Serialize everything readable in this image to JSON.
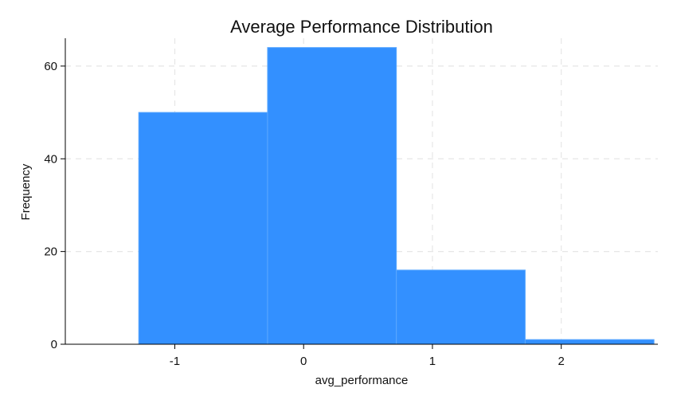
{
  "chart_data": {
    "type": "bar",
    "title": "Average Performance Distribution",
    "xlabel": "avg_performance",
    "ylabel": "Frequency",
    "bins": [
      {
        "start": -1.28,
        "end": -0.28,
        "value": 50
      },
      {
        "start": -0.28,
        "end": 0.72,
        "value": 64
      },
      {
        "start": 0.72,
        "end": 1.72,
        "value": 16
      },
      {
        "start": 1.72,
        "end": 2.72,
        "value": 1
      }
    ],
    "xlim": [
      -1.85,
      2.75
    ],
    "ylim": [
      0,
      66
    ],
    "xticks": [
      -1,
      0,
      1,
      2
    ],
    "xtick_labels": [
      "-1",
      "0",
      "1",
      "2"
    ],
    "yticks": [
      0,
      20,
      40,
      60
    ],
    "ytick_labels": [
      "0",
      "20",
      "40",
      "60"
    ],
    "grid": true,
    "bar_color": "#3390ff"
  }
}
